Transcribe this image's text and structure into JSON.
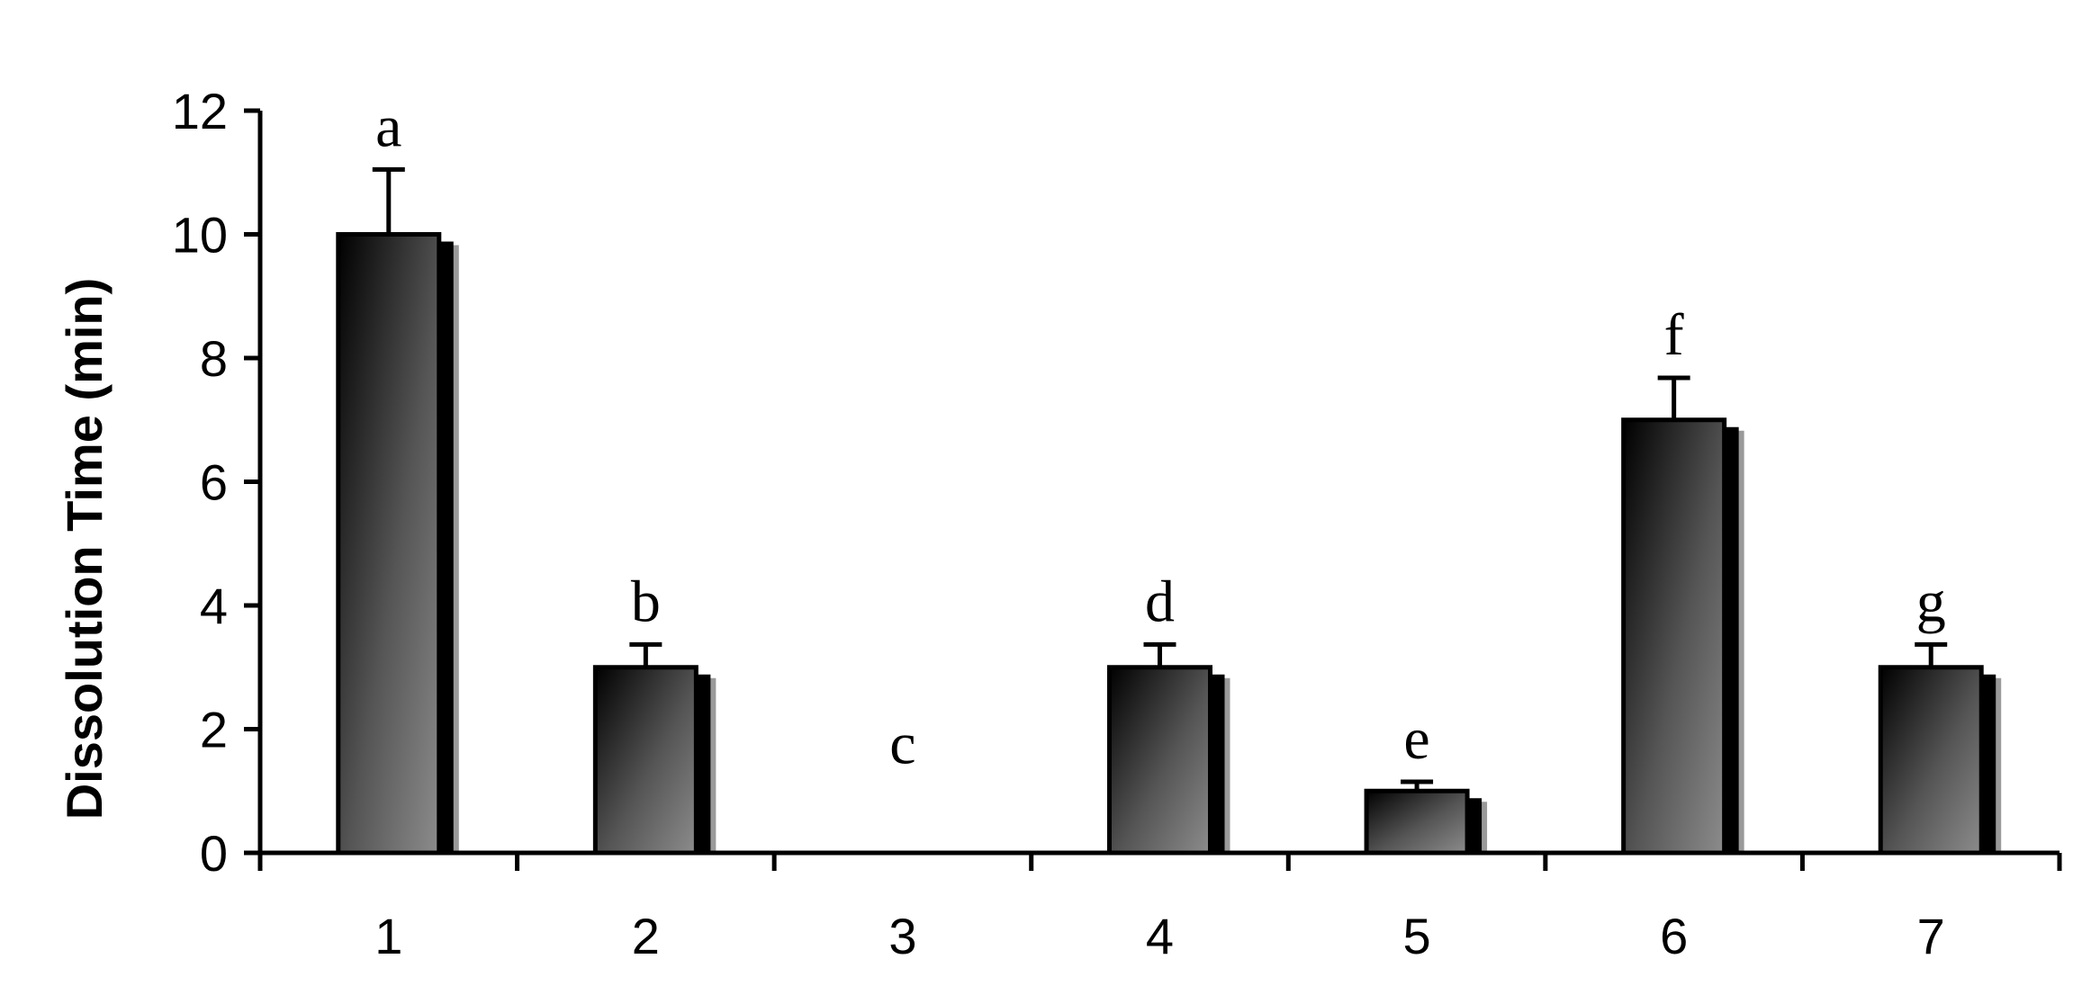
{
  "chart_data": {
    "type": "bar",
    "xlabel": "",
    "ylabel": "Dissolution Time (min)",
    "ylim": [
      0,
      12
    ],
    "yticks": [
      0,
      2,
      4,
      6,
      8,
      10,
      12
    ],
    "categories": [
      "1",
      "2",
      "3",
      "4",
      "5",
      "6",
      "7"
    ],
    "values": [
      10,
      3,
      0,
      3,
      1,
      7,
      3
    ],
    "errors": [
      1.05,
      0.37,
      0,
      0.37,
      0.15,
      0.68,
      0.37
    ],
    "annotations": [
      "a",
      "b",
      "c",
      "d",
      "e",
      "f",
      "g"
    ],
    "grid": false,
    "legend": "none",
    "colors": {
      "bar_dark": "#000000",
      "bar_light": "#8c8c8c",
      "shadow": "#9a9a9a"
    }
  }
}
